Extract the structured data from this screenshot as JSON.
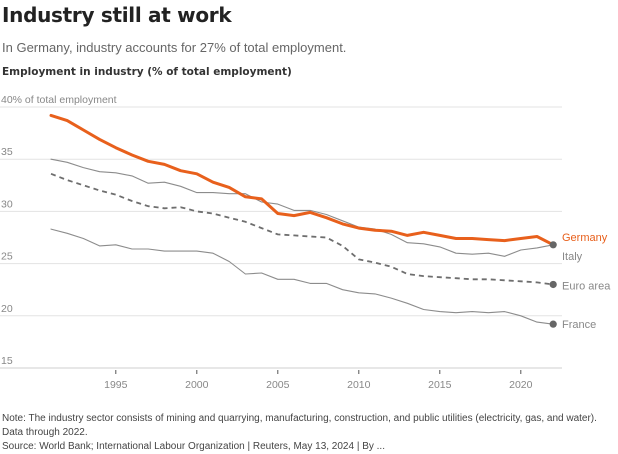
{
  "header": {
    "title": "Industry still at work",
    "subtitle": "In Germany, industry accounts for 27% of total employment.",
    "chart_heading": "Employment in industry (% of total employment)"
  },
  "footer": {
    "note": "Note: The industry sector consists of mining and quarrying, manufacturing, construction, and public utilities (electricity, gas, and water).",
    "data_through": "Data through 2022.",
    "source": "Source: World Bank; International Labour Organization | Reuters, May 13, 2024 | By ..."
  },
  "chart_data": {
    "type": "line",
    "title": "Employment in industry (% of total employment)",
    "xlabel": "",
    "ylabel": "% of total employment",
    "y_top_label": "40% of total employment",
    "ylim": [
      15,
      40
    ],
    "xlim": [
      1991,
      2022
    ],
    "yticks": [
      15,
      20,
      25,
      30,
      35,
      40
    ],
    "ytick_labels": [
      "15",
      "20",
      "25",
      "30",
      "35",
      "40% of total employment"
    ],
    "xticks": [
      1995,
      2000,
      2005,
      2010,
      2015,
      2020
    ],
    "xtick_labels": [
      "1995",
      "2000",
      "2005",
      "2010",
      "2015",
      "2020"
    ],
    "grid": true,
    "legend": "direct labels at line ends (right)",
    "x": [
      1991,
      1992,
      1993,
      1994,
      1995,
      1996,
      1997,
      1998,
      1999,
      2000,
      2001,
      2002,
      2003,
      2004,
      2005,
      2006,
      2007,
      2008,
      2009,
      2010,
      2011,
      2012,
      2013,
      2014,
      2015,
      2016,
      2017,
      2018,
      2019,
      2020,
      2021,
      2022
    ],
    "series": [
      {
        "name": "Germany",
        "color": "#e8601c",
        "style": "thick",
        "end_marker": false,
        "values": [
          39.2,
          38.7,
          37.8,
          36.9,
          36.1,
          35.4,
          34.8,
          34.5,
          33.9,
          33.6,
          32.8,
          32.3,
          31.4,
          31.2,
          29.8,
          29.6,
          29.9,
          29.4,
          28.8,
          28.4,
          28.2,
          28.1,
          27.7,
          28.0,
          27.7,
          27.4,
          27.4,
          27.3,
          27.2,
          27.4,
          27.6,
          26.8
        ]
      },
      {
        "name": "Italy",
        "color": "#8c8c8c",
        "style": "solid",
        "end_marker": true,
        "values": [
          35.0,
          34.7,
          34.2,
          33.8,
          33.7,
          33.4,
          32.7,
          32.8,
          32.4,
          31.8,
          31.8,
          31.7,
          31.7,
          30.9,
          30.7,
          30.1,
          30.1,
          29.7,
          29.1,
          28.5,
          28.3,
          27.8,
          27.0,
          26.9,
          26.6,
          26.0,
          25.9,
          26.0,
          25.7,
          26.3,
          26.5,
          26.8
        ]
      },
      {
        "name": "Euro area",
        "color": "#6e6e6e",
        "style": "dashed",
        "end_marker": true,
        "values": [
          33.6,
          33.0,
          32.5,
          32.0,
          31.6,
          31.0,
          30.5,
          30.3,
          30.4,
          30.0,
          29.8,
          29.4,
          29.0,
          28.4,
          27.8,
          27.7,
          27.6,
          27.5,
          26.7,
          25.4,
          25.1,
          24.7,
          24.0,
          23.8,
          23.7,
          23.6,
          23.5,
          23.5,
          23.4,
          23.3,
          23.2,
          23.0
        ]
      },
      {
        "name": "France",
        "color": "#8c8c8c",
        "style": "solid",
        "end_marker": true,
        "values": [
          28.3,
          27.9,
          27.4,
          26.7,
          26.8,
          26.4,
          26.4,
          26.2,
          26.2,
          26.2,
          26.0,
          25.2,
          24.0,
          24.1,
          23.5,
          23.5,
          23.1,
          23.1,
          22.5,
          22.2,
          22.1,
          21.7,
          21.2,
          20.6,
          20.4,
          20.3,
          20.4,
          20.3,
          20.4,
          20.0,
          19.4,
          19.2
        ]
      }
    ]
  }
}
